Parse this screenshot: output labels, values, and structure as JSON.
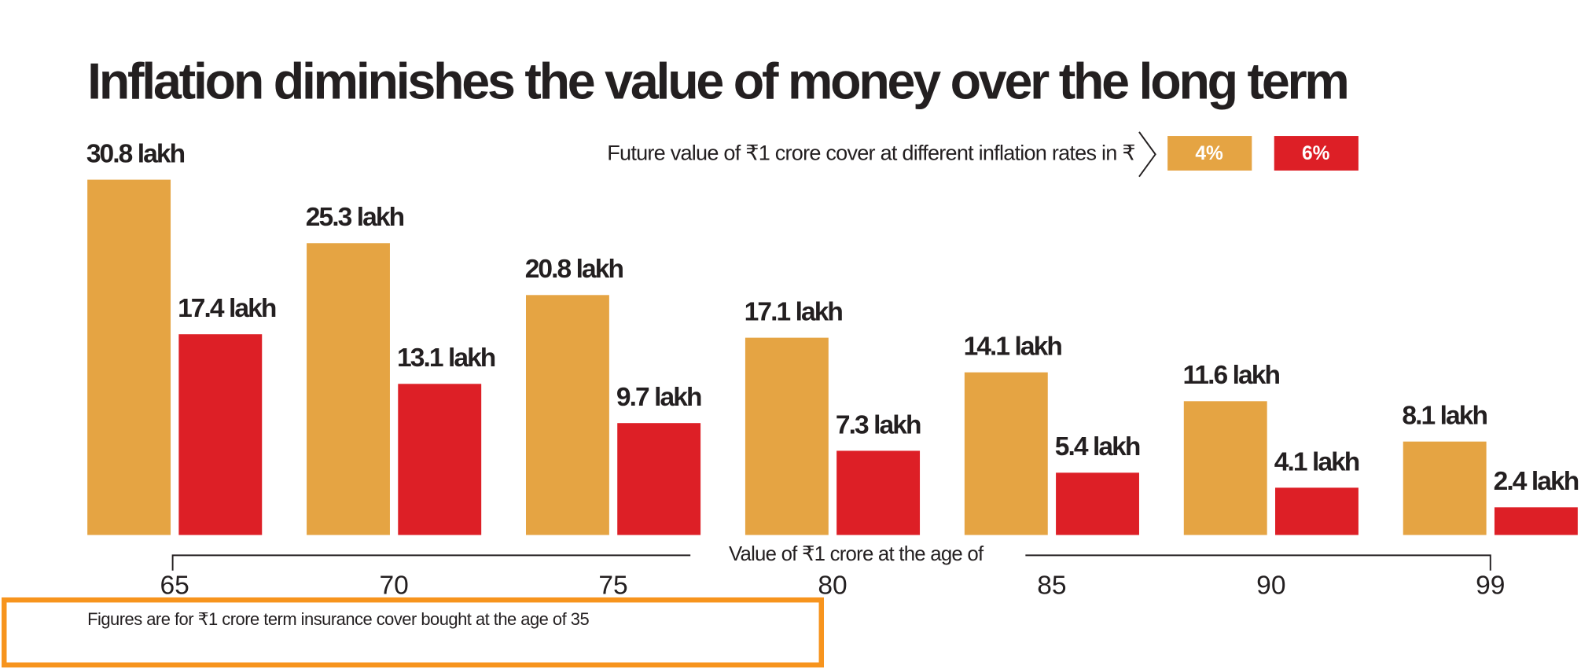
{
  "chart_data": {
    "type": "bar",
    "title": "Inflation diminishes the value of money over the long term",
    "legend_title": "Future value of ₹1 crore cover at different inflation rates in ₹",
    "x_label": "Value of ₹1 crore at the age of",
    "note": "Figures are for ₹1 crore term insurance cover bought at the age of 35",
    "categories": [
      "65",
      "70",
      "75",
      "80",
      "85",
      "90",
      "99"
    ],
    "series": [
      {
        "name": "4%",
        "color": "#e5a443",
        "values": [
          30.8,
          25.3,
          20.8,
          17.1,
          14.1,
          11.6,
          8.1
        ],
        "value_labels": [
          "30.8 lakh",
          "25.3 lakh",
          "20.8 lakh",
          "17.1 lakh",
          "14.1 lakh",
          "11.6 lakh",
          "8.1 lakh"
        ]
      },
      {
        "name": "6%",
        "color": "#dd1f26",
        "values": [
          17.4,
          13.1,
          9.7,
          7.3,
          5.4,
          4.1,
          2.4
        ],
        "value_labels": [
          "17.4 lakh",
          "13.1 lakh",
          "9.7 lakh",
          "7.3 lakh",
          "5.4 lakh",
          "4.1 lakh",
          "2.4 lakh"
        ]
      }
    ]
  }
}
